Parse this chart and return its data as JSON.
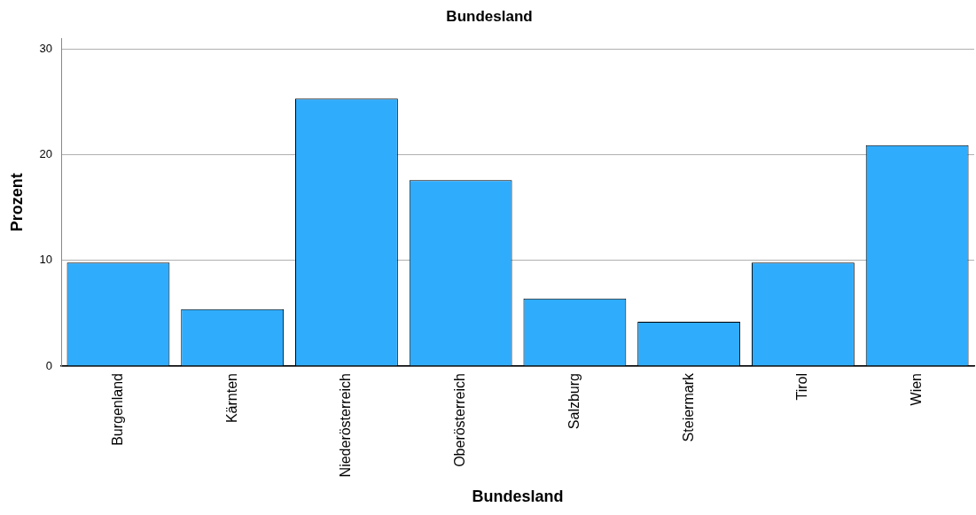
{
  "chart_data": {
    "type": "bar",
    "title": "Bundesland",
    "xlabel": "Bundesland",
    "ylabel": "Prozent",
    "categories": [
      "Burgenland",
      "Kärnten",
      "Niederösterreich",
      "Oberösterreich",
      "Salzburg",
      "Steiermark",
      "Tirol",
      "Wien"
    ],
    "values": [
      9.8,
      5.4,
      25.3,
      17.6,
      6.4,
      4.2,
      9.8,
      20.9
    ],
    "color": "#30acfc",
    "ylim": [
      0,
      31
    ],
    "yticks": [
      0,
      10,
      20,
      30
    ],
    "grid": "y",
    "legend": false
  }
}
